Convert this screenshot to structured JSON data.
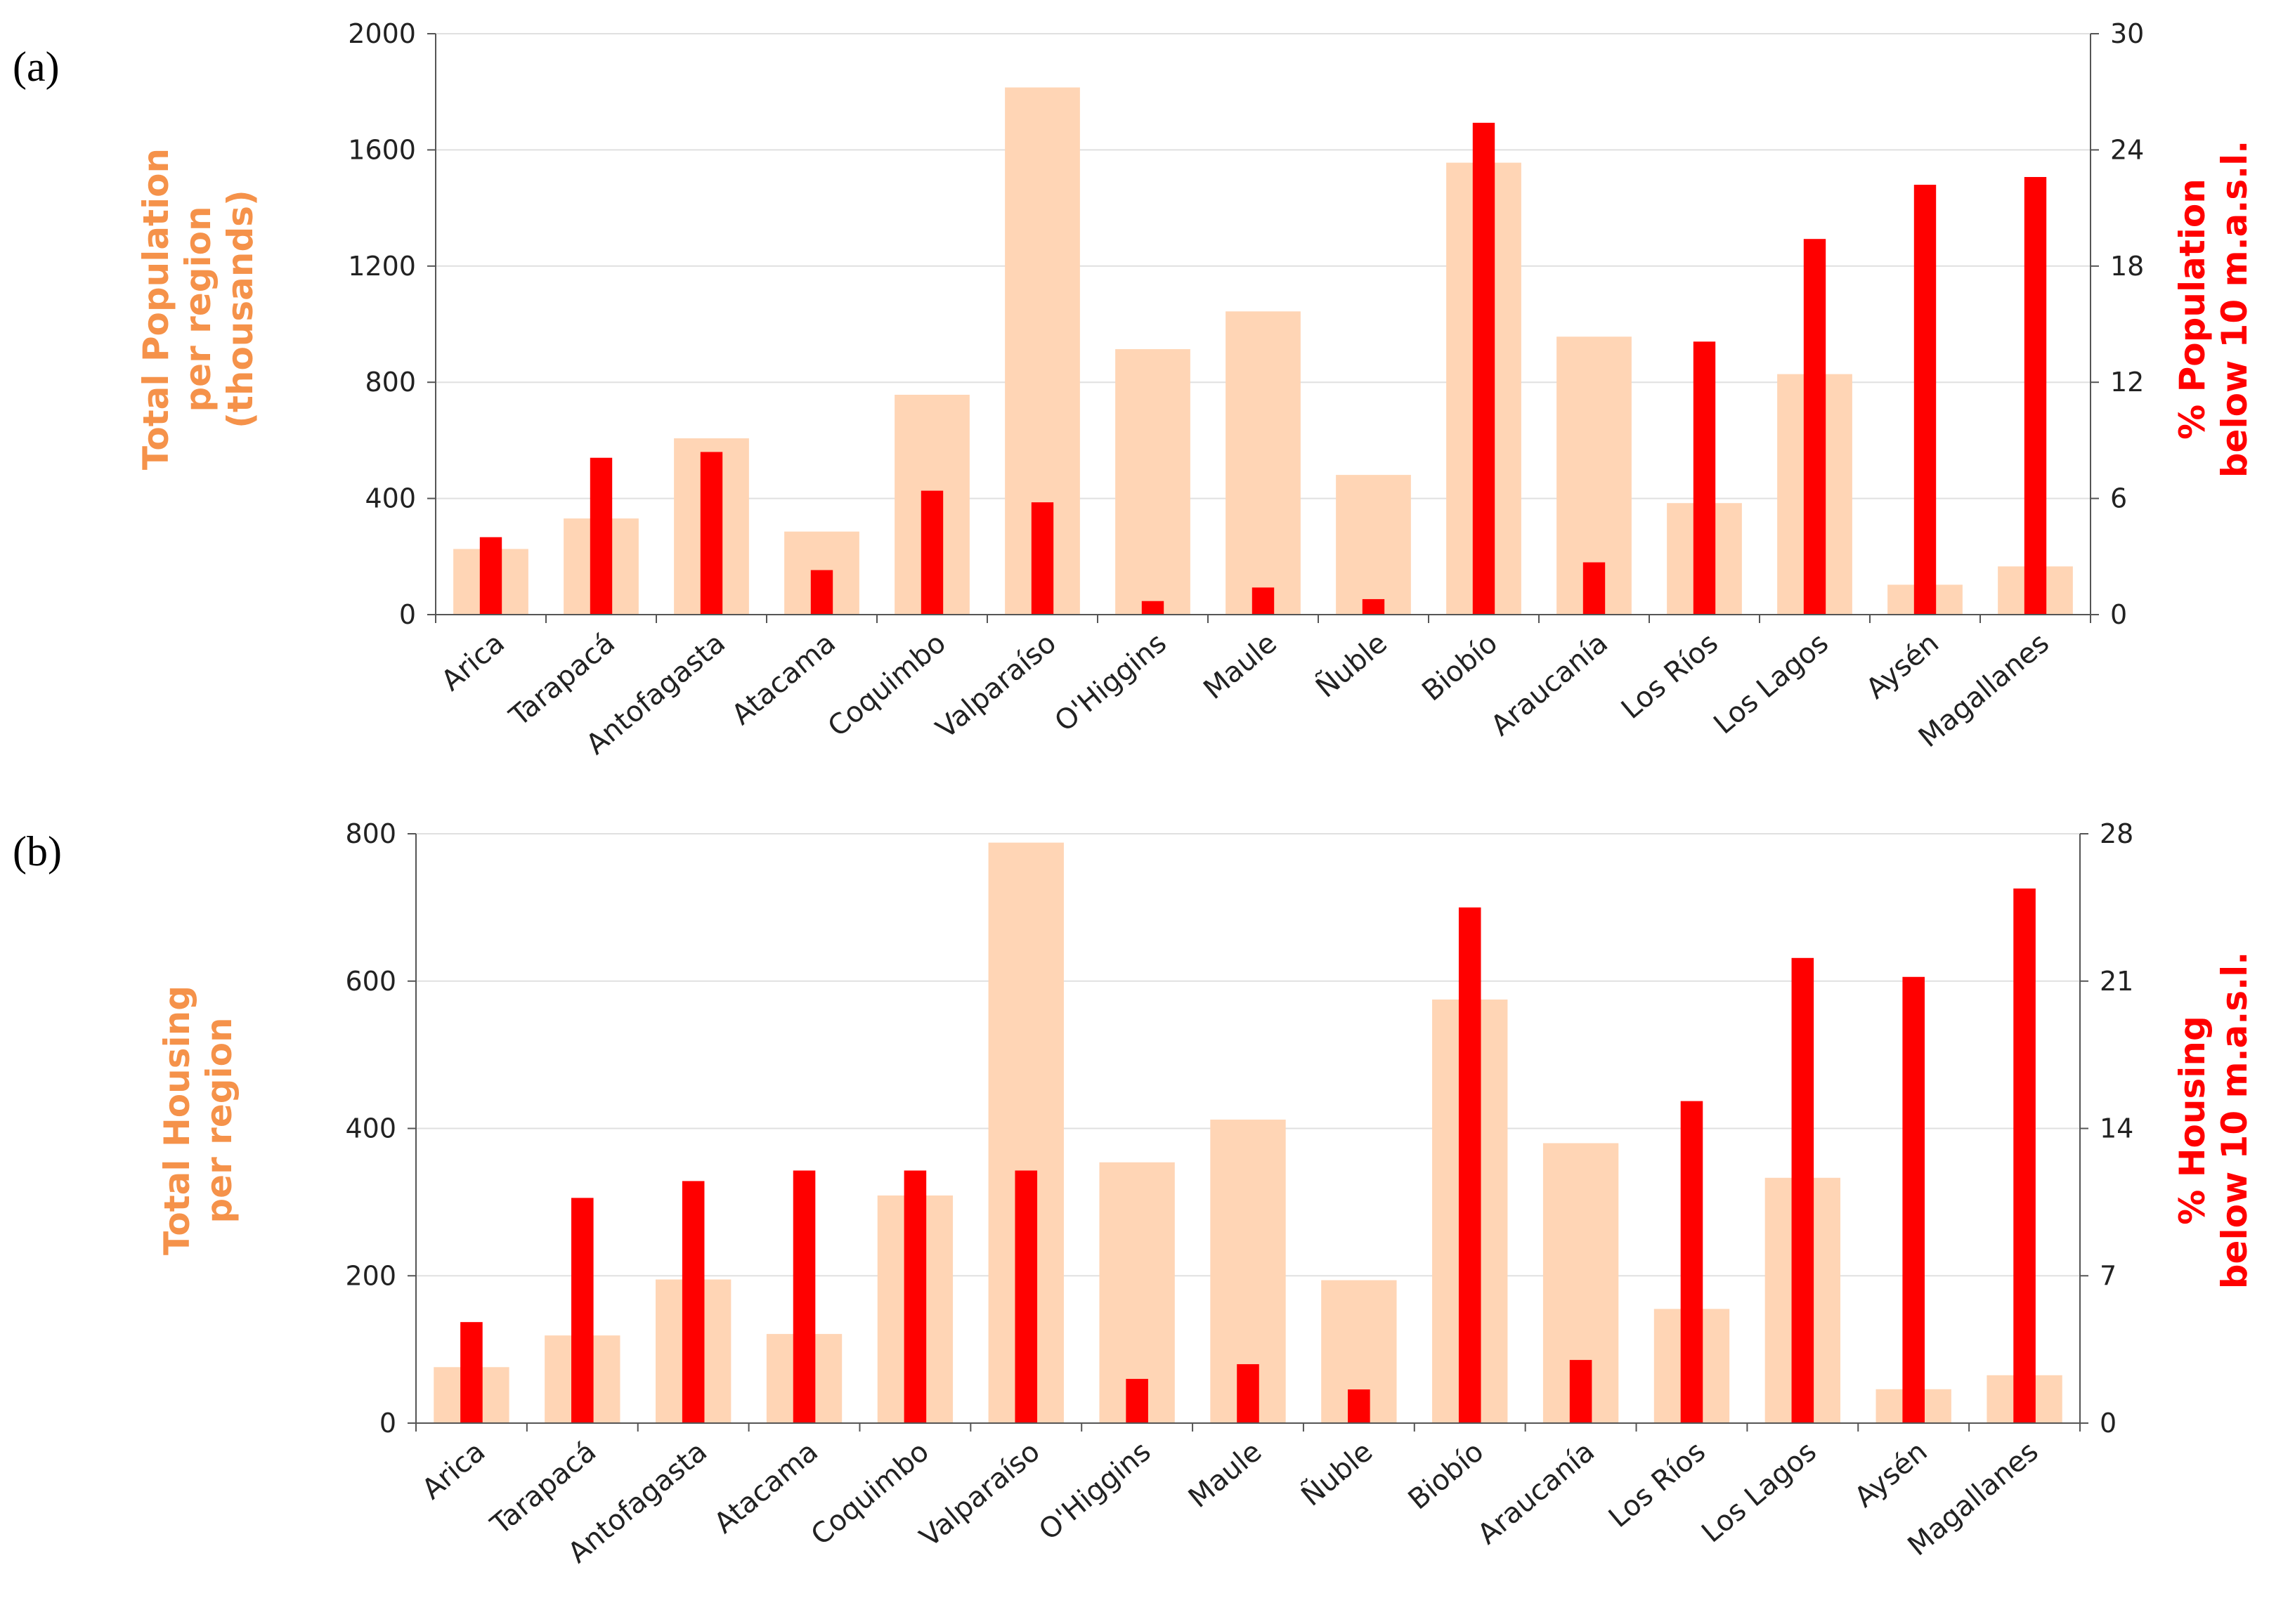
{
  "chart_data": [
    {
      "type": "bar",
      "panel_label": "(a)",
      "categories": [
        "Arica",
        "Tarapacá",
        "Antofagasta",
        "Atacama",
        "Coquimbo",
        "Valparaíso",
        "O'Higgins",
        "Maule",
        "Ñuble",
        "Biobío",
        "Araucanía",
        "Los Ríos",
        "Los Lagos",
        "Aysén",
        "Magallanes"
      ],
      "ylabel_left": [
        "Total Population",
        "per region",
        "(thousands)"
      ],
      "ylabel_right": [
        "% Population",
        "below 10 m.a.s.l."
      ],
      "ylim_left": [
        0,
        2000
      ],
      "yticks_left": [
        "0",
        "400",
        "800",
        "1200",
        "1600",
        "2000"
      ],
      "ylim_right": [
        0,
        30
      ],
      "yticks_right": [
        "0",
        "6",
        "12",
        "18",
        "24",
        "30"
      ],
      "grid": true,
      "series": [
        {
          "name": "Total Population per region (thousands)",
          "axis": "left",
          "color": "#ffd5b5",
          "values": [
            226,
            331,
            607,
            286,
            757,
            1815,
            914,
            1044,
            481,
            1556,
            957,
            384,
            828,
            103,
            166
          ]
        },
        {
          "name": "% Population below 10 m.a.s.l.",
          "axis": "right",
          "color": "#ff0000",
          "values": [
            4.0,
            8.1,
            8.4,
            2.3,
            6.4,
            5.8,
            0.7,
            1.4,
            0.8,
            25.4,
            2.7,
            14.1,
            19.4,
            22.2,
            22.6
          ]
        }
      ]
    },
    {
      "type": "bar",
      "panel_label": "(b)",
      "categories": [
        "Arica",
        "Tarapacá",
        "Antofagasta",
        "Atacama",
        "Coquimbo",
        "Valparaíso",
        "O'Higgins",
        "Maule",
        "Ñuble",
        "Biobío",
        "Araucanía",
        "Los Ríos",
        "Los Lagos",
        "Aysén",
        "Magallanes"
      ],
      "ylabel_left": [
        "Total Housing",
        "per region"
      ],
      "ylabel_right": [
        "% Housing",
        "below 10 m.a.s.l."
      ],
      "ylim_left": [
        0,
        800
      ],
      "yticks_left": [
        "0",
        "200",
        "400",
        "600",
        "800"
      ],
      "ylim_right": [
        0,
        28
      ],
      "yticks_right": [
        "0",
        "7",
        "14",
        "21",
        "28"
      ],
      "grid": true,
      "series": [
        {
          "name": "Total Housing per region",
          "axis": "left",
          "color": "#ffd5b5",
          "values": [
            76,
            119,
            195,
            121,
            309,
            788,
            354,
            412,
            194,
            575,
            380,
            155,
            333,
            46,
            65
          ]
        },
        {
          "name": "% Housing below 10 m.a.s.l.",
          "axis": "right",
          "color": "#ff0000",
          "values": [
            4.8,
            10.7,
            11.5,
            12.0,
            12.0,
            12.0,
            2.1,
            2.8,
            1.6,
            24.5,
            3.0,
            15.3,
            22.1,
            21.2,
            25.4
          ]
        }
      ]
    }
  ]
}
